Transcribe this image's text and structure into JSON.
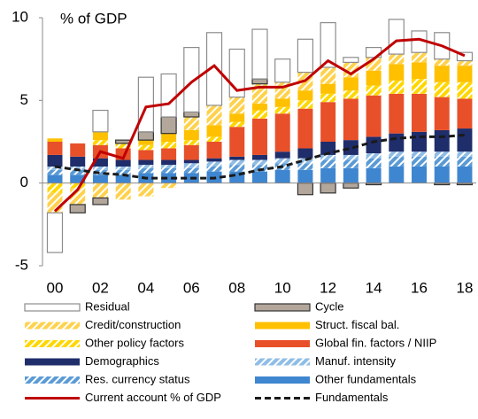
{
  "chart_data": {
    "type": "bar",
    "y_label": "% of GDP",
    "categories": [
      "00",
      null,
      "02",
      null,
      "04",
      null,
      "06",
      null,
      "08",
      null,
      "10",
      null,
      "12",
      null,
      "14",
      null,
      "16",
      null,
      "18"
    ],
    "ylim": [
      -5,
      10
    ],
    "yticks": [
      -5,
      0,
      5,
      10
    ],
    "series": [
      {
        "name": "Residual",
        "color": "#ffffff",
        "stroke": "#8c8c8c",
        "values": [
          -2.4,
          0,
          1.3,
          0,
          3.3,
          2.6,
          3.9,
          4.4,
          2.9,
          3.0,
          1.4,
          2.0,
          2.7,
          0.3,
          0.6,
          2.1,
          1.3,
          1.6,
          0.5
        ]
      },
      {
        "name": "Cycle",
        "color": "#b3a79c",
        "stroke": "#333333",
        "values": [
          0,
          -0.5,
          -0.4,
          0.2,
          0.5,
          1.0,
          0.3,
          0,
          0,
          0.3,
          0,
          -0.7,
          -0.6,
          -0.3,
          -0.1,
          0,
          0,
          -0.1,
          -0.1
        ]
      },
      {
        "name": "Credit/construction",
        "color": "#ffd24d",
        "hatch": true,
        "values": [
          -1.2,
          -1.0,
          -0.9,
          -1.0,
          -0.8,
          -0.3,
          0.8,
          1.2,
          1.0,
          1.2,
          1.0,
          1.1,
          1.0,
          0.9,
          0.8,
          0.6,
          0.6,
          0.4,
          0.3
        ]
      },
      {
        "name": "Struct. fiscal bal.",
        "color": "#ffc000",
        "values": [
          0.2,
          0,
          0.5,
          0,
          0.3,
          0.5,
          0.6,
          0.7,
          0.5,
          0.4,
          0.5,
          0.6,
          0.6,
          0.8,
          0.9,
          1.0,
          1.0,
          1.0,
          1.0
        ]
      },
      {
        "name": "Other policy factors",
        "color": "#ffd700",
        "hatch": true,
        "values": [
          -0.6,
          -0.3,
          0.3,
          0.3,
          0.3,
          0.4,
          0.3,
          0.3,
          0.3,
          0.5,
          0.4,
          0.5,
          0.5,
          0.5,
          0.6,
          0.8,
          0.9,
          0.9,
          1.0
        ]
      },
      {
        "name": "Global fin. factors / NIIP",
        "color": "#e8502a",
        "values": [
          0.8,
          0.8,
          0.8,
          0.7,
          0.6,
          0.7,
          0.9,
          1.0,
          1.8,
          2.2,
          2.3,
          2.4,
          2.4,
          2.5,
          2.5,
          2.4,
          2.3,
          2.0,
          1.8
        ]
      },
      {
        "name": "Demographics",
        "color": "#1f2d6b",
        "values": [
          0.7,
          0.6,
          0.5,
          0.4,
          0.3,
          0.3,
          0.2,
          0.2,
          0.2,
          0.3,
          0.4,
          0.6,
          0.8,
          0.9,
          1.0,
          1.1,
          1.2,
          1.3,
          1.4
        ]
      },
      {
        "name": "Manuf. intensity",
        "color": "#8fbde6",
        "hatch": true,
        "values": [
          0.2,
          0.2,
          0.2,
          0.2,
          0.2,
          0.2,
          0.3,
          0.3,
          0.3,
          0.3,
          0.3,
          0.3,
          0.3,
          0.3,
          0.3,
          0.3,
          0.3,
          0.3,
          0.3
        ]
      },
      {
        "name": "Res. currency status",
        "color": "#5b9bd5",
        "hatch": true,
        "values": [
          0.3,
          0.3,
          0.3,
          0.3,
          0.3,
          0.3,
          0.3,
          0.3,
          0.4,
          0.4,
          0.4,
          0.4,
          0.5,
          0.5,
          0.6,
          0.6,
          0.6,
          0.6,
          0.6
        ]
      },
      {
        "name": "Other fundamentals",
        "color": "#3f86d0",
        "values": [
          0.5,
          0.5,
          0.5,
          0.5,
          0.6,
          0.6,
          0.6,
          0.7,
          0.7,
          0.7,
          0.8,
          0.8,
          0.9,
          0.9,
          0.9,
          1.0,
          1.0,
          1.0,
          1.0
        ]
      },
      {
        "name": "Current account % of GDP",
        "type": "line",
        "color": "#c00000",
        "values": [
          -1.7,
          -0.4,
          1.9,
          1.5,
          4.6,
          4.8,
          6.1,
          7.1,
          5.6,
          5.8,
          5.8,
          6.2,
          7.4,
          6.6,
          7.5,
          8.6,
          8.7,
          8.3,
          7.7
        ]
      },
      {
        "name": "Fundamentals",
        "type": "line",
        "dashed": true,
        "color": "#1a1a1a",
        "values": [
          1.0,
          0.8,
          0.6,
          0.5,
          0.3,
          0.3,
          0.3,
          0.3,
          0.5,
          0.8,
          1.0,
          1.4,
          1.8,
          2.1,
          2.5,
          2.7,
          2.8,
          2.8,
          2.9
        ]
      }
    ]
  }
}
